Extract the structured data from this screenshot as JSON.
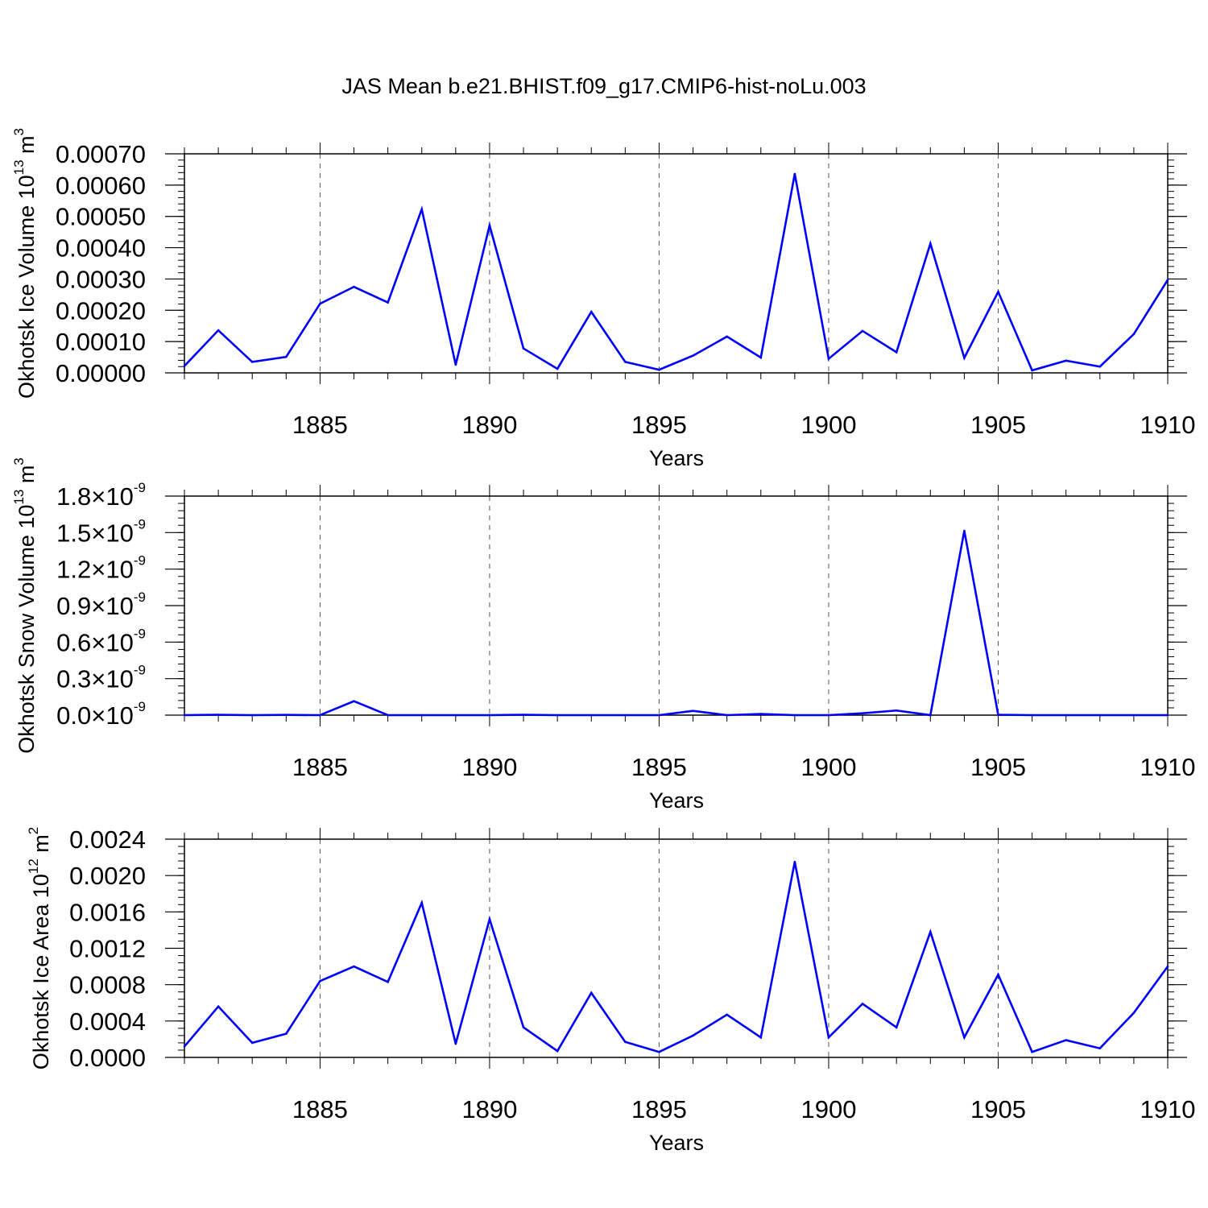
{
  "chart_data": [
    {
      "type": "line",
      "title": "JAS Mean b.e21.BHIST.f09_g17.CMIP6-hist-noLu.003",
      "xlabel": "Years",
      "ylabel": "Okhotsk Ice Volume 10",
      "ylabel_exp": "13",
      "ylabel_unit": " m",
      "ylabel_unit_exp": "3",
      "xlim": [
        1881,
        1910
      ],
      "ylim": [
        0,
        0.0007
      ],
      "x_ticks": [
        1885,
        1890,
        1895,
        1900,
        1905,
        1910
      ],
      "y_ticks": [
        0,
        0.0001,
        0.0002,
        0.0003,
        0.0004,
        0.0005,
        0.0006,
        0.0007
      ],
      "y_tick_labels": [
        "0.00000",
        "0.00010",
        "0.00020",
        "0.00030",
        "0.00040",
        "0.00050",
        "0.00060",
        "0.00070"
      ],
      "y_minor_step": 2e-05,
      "grid": "vertical dashed at major x ticks",
      "line_color": "#0000ff",
      "x": [
        1881,
        1882,
        1883,
        1884,
        1885,
        1886,
        1887,
        1888,
        1889,
        1890,
        1891,
        1892,
        1893,
        1894,
        1895,
        1896,
        1897,
        1898,
        1899,
        1900,
        1901,
        1902,
        1903,
        1904,
        1905,
        1906,
        1907,
        1908,
        1909,
        1910
      ],
      "values": [
        2.2e-05,
        0.000136,
        3.5e-05,
        5.1e-05,
        0.000221,
        0.000275,
        0.000225,
        0.000523,
        2.6e-05,
        0.000471,
        7.8e-05,
        1.3e-05,
        0.000195,
        3.5e-05,
        1e-05,
        5.5e-05,
        0.000116,
        4.9e-05,
        0.000636,
        4.5e-05,
        0.000134,
        6.6e-05,
        0.000413,
        4.8e-05,
        0.000259,
        8e-06,
        3.9e-05,
        2e-05,
        0.000124,
        0.000297
      ]
    },
    {
      "type": "line",
      "xlabel": "Years",
      "ylabel": "Okhotsk Snow Volume 10",
      "ylabel_exp": "13",
      "ylabel_unit": " m",
      "ylabel_unit_exp": "3",
      "xlim": [
        1881,
        1910
      ],
      "ylim": [
        0,
        1.8e-09
      ],
      "x_ticks": [
        1885,
        1890,
        1895,
        1900,
        1905,
        1910
      ],
      "y_ticks": [
        0,
        3e-10,
        6e-10,
        9e-10,
        1.2e-09,
        1.5e-09,
        1.8e-09
      ],
      "y_tick_mantissas": [
        "0.0",
        "0.3",
        "0.6",
        "0.9",
        "1.2",
        "1.5",
        "1.8"
      ],
      "y_tick_times": "×10",
      "y_tick_exp": "-9",
      "y_minor_step": 6e-11,
      "grid": "vertical dashed at major x ticks",
      "line_color": "#0000ff",
      "x": [
        1881,
        1882,
        1883,
        1884,
        1885,
        1886,
        1887,
        1888,
        1889,
        1890,
        1891,
        1892,
        1893,
        1894,
        1895,
        1896,
        1897,
        1898,
        1899,
        1900,
        1901,
        1902,
        1903,
        1904,
        1905,
        1906,
        1907,
        1908,
        1909,
        1910
      ],
      "values": [
        0.0,
        3e-12,
        0.0,
        2e-12,
        0.0,
        1.15e-10,
        0.0,
        0.0,
        0.0,
        0.0,
        3e-12,
        0.0,
        0.0,
        0.0,
        0.0,
        3.5e-11,
        0.0,
        1e-11,
        0.0,
        0.0,
        1.5e-11,
        3.8e-11,
        0.0,
        1.515e-09,
        3e-12,
        0.0,
        0.0,
        0.0,
        0.0,
        0.0
      ]
    },
    {
      "type": "line",
      "xlabel": "Years",
      "ylabel": "Okhotsk Ice Area 10",
      "ylabel_exp": "12",
      "ylabel_unit": " m",
      "ylabel_unit_exp": "2",
      "xlim": [
        1881,
        1910
      ],
      "ylim": [
        0,
        0.0024
      ],
      "x_ticks": [
        1885,
        1890,
        1895,
        1900,
        1905,
        1910
      ],
      "y_ticks": [
        0,
        0.0004,
        0.0008,
        0.0012,
        0.0016,
        0.002,
        0.0024
      ],
      "y_tick_labels": [
        "0.0000",
        "0.0004",
        "0.0008",
        "0.0012",
        "0.0016",
        "0.0020",
        "0.0024"
      ],
      "y_minor_step": 8e-05,
      "grid": "vertical dashed at major x ticks",
      "line_color": "#0000ff",
      "x": [
        1881,
        1882,
        1883,
        1884,
        1885,
        1886,
        1887,
        1888,
        1889,
        1890,
        1891,
        1892,
        1893,
        1894,
        1895,
        1896,
        1897,
        1898,
        1899,
        1900,
        1901,
        1902,
        1903,
        1904,
        1905,
        1906,
        1907,
        1908,
        1909,
        1910
      ],
      "values": [
        0.00012,
        0.00056,
        0.00016,
        0.00026,
        0.00084,
        0.001,
        0.00083,
        0.0017,
        0.00015,
        0.00152,
        0.00033,
        7e-05,
        0.00071,
        0.00017,
        6e-05,
        0.00024,
        0.00047,
        0.00022,
        0.00215,
        0.00022,
        0.00059,
        0.00033,
        0.00138,
        0.00022,
        0.00091,
        6e-05,
        0.00019,
        0.0001,
        0.00049,
        0.001
      ]
    }
  ]
}
